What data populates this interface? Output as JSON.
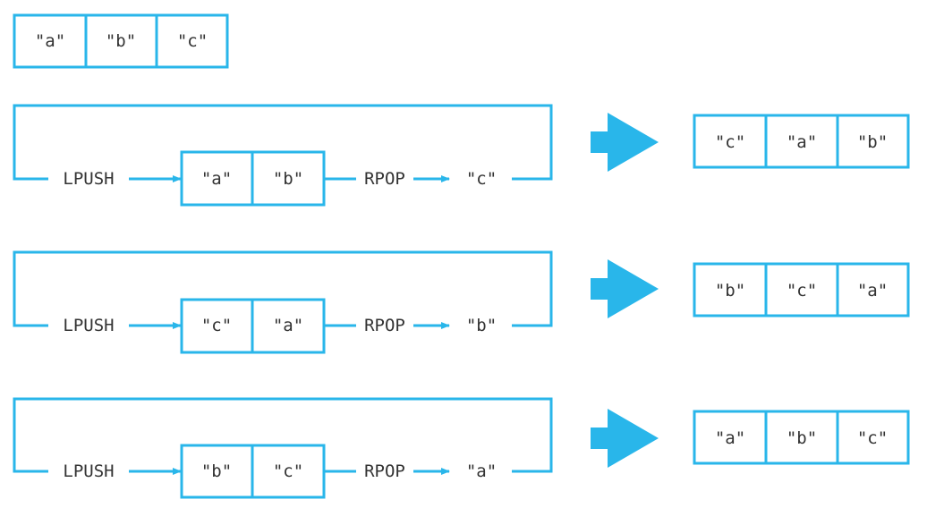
{
  "colors": {
    "accent": "#29b6ea",
    "text": "#333333",
    "background": "#ffffff"
  },
  "initial_list": [
    "\"a\"",
    "\"b\"",
    "\"c\""
  ],
  "rows": [
    {
      "push_label": "LPUSH",
      "pop_label": "RPOP",
      "middle": [
        "\"a\"",
        "\"b\""
      ],
      "popped": "\"c\"",
      "result": [
        "\"c\"",
        "\"a\"",
        "\"b\""
      ],
      "arrow_icon": "right-arrow-icon"
    },
    {
      "push_label": "LPUSH",
      "pop_label": "RPOP",
      "middle": [
        "\"c\"",
        "\"a\""
      ],
      "popped": "\"b\"",
      "result": [
        "\"b\"",
        "\"c\"",
        "\"a\""
      ],
      "arrow_icon": "right-arrow-icon"
    },
    {
      "push_label": "LPUSH",
      "pop_label": "RPOP",
      "middle": [
        "\"b\"",
        "\"c\""
      ],
      "popped": "\"a\"",
      "result": [
        "\"a\"",
        "\"b\"",
        "\"c\""
      ],
      "arrow_icon": "right-arrow-icon"
    }
  ]
}
